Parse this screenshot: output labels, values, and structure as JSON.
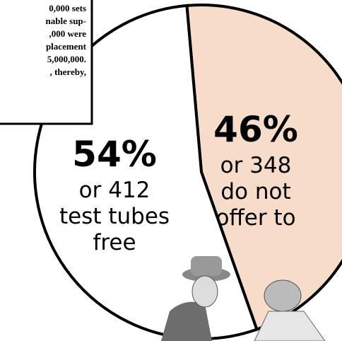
{
  "chart_data": {
    "type": "pie",
    "values": [
      54,
      46
    ],
    "value_labels": [
      "54%",
      "46%"
    ],
    "labels": [
      [
        "or 412",
        "test tubes",
        "free"
      ],
      [
        "or 348",
        "do not",
        "offer to"
      ]
    ],
    "colors": [
      "#ffffff",
      "#f7dcc9"
    ],
    "inset_text": [
      "0,000 sets",
      "nable sup-",
      ",000 were",
      "placement",
      "5,000,000.",
      ", thereby,"
    ]
  }
}
